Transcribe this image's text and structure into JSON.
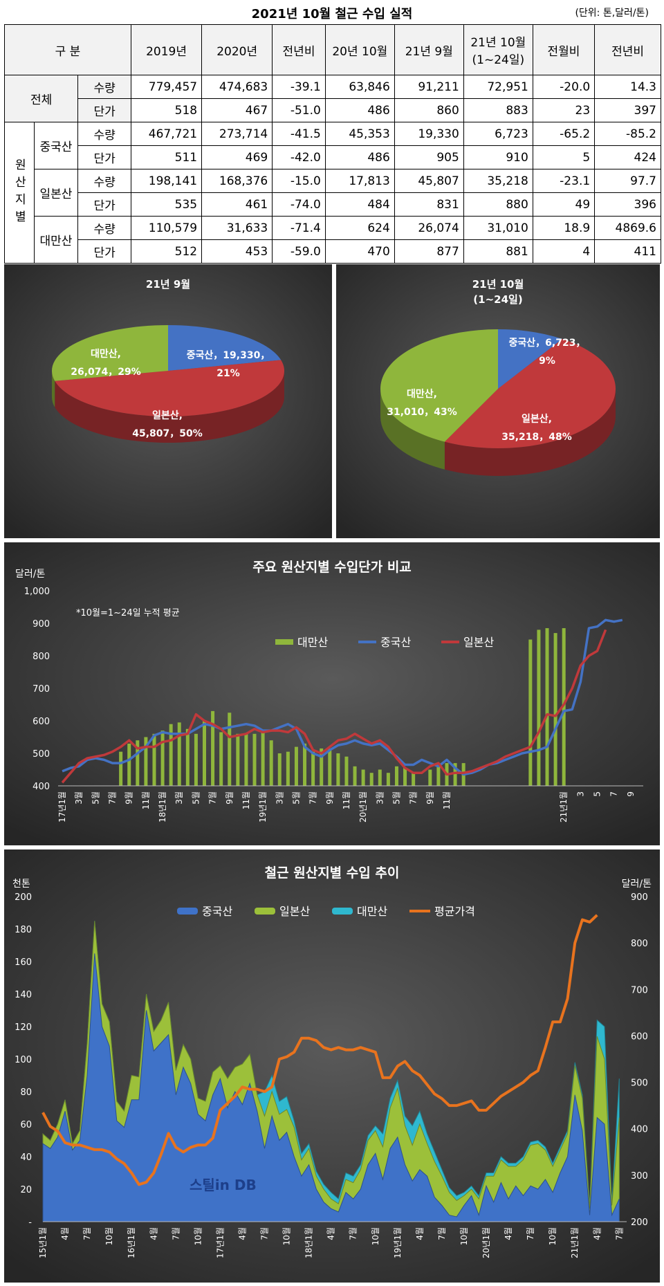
{
  "header": {
    "title": "2021년 10월 철근 수입 실적",
    "unit": "(단위: 톤,달러/톤)"
  },
  "table": {
    "col_gubun": "구 분",
    "columns": [
      "2019년",
      "2020년",
      "전년비",
      "20년 10월",
      "21년 9월",
      "21년 10월(1~24일)",
      "전월비",
      "전년비"
    ],
    "col6_line1": "21년 10월",
    "col6_line2": "(1~24일)",
    "total_label": "전체",
    "origin_label": "원산지별",
    "qty_label": "수량",
    "price_label": "단가",
    "rows": [
      {
        "group": "전체",
        "qty": [
          "779,457",
          "474,683",
          "-39.1",
          "63,846",
          "91,211",
          "72,951",
          "-20.0",
          "14.3"
        ],
        "price": [
          "518",
          "467",
          "-51.0",
          "486",
          "860",
          "883",
          "23",
          "397"
        ]
      },
      {
        "group": "중국산",
        "qty": [
          "467,721",
          "273,714",
          "-41.5",
          "45,353",
          "19,330",
          "6,723",
          "-65.2",
          "-85.2"
        ],
        "price": [
          "511",
          "469",
          "-42.0",
          "486",
          "905",
          "910",
          "5",
          "424"
        ]
      },
      {
        "group": "일본산",
        "qty": [
          "198,141",
          "168,376",
          "-15.0",
          "17,813",
          "45,807",
          "35,218",
          "-23.1",
          "97.7"
        ],
        "price": [
          "535",
          "461",
          "-74.0",
          "484",
          "831",
          "880",
          "49",
          "396"
        ]
      },
      {
        "group": "대만산",
        "qty": [
          "110,579",
          "31,633",
          "-71.4",
          "624",
          "26,074",
          "31,010",
          "18.9",
          "4869.6"
        ],
        "price": [
          "512",
          "453",
          "-59.0",
          "470",
          "877",
          "881",
          "4",
          "411"
        ]
      }
    ]
  },
  "colors": {
    "china": "#4472c4",
    "japan": "#c0393b",
    "taiwan": "#8fb63c",
    "avg": "#e8731e",
    "panel_bg": "#3d3d3d"
  },
  "chart_data": [
    {
      "type": "pie",
      "title": "21년 9월",
      "slices": [
        {
          "name": "중국산",
          "value": 19330,
          "value_label": "19,330",
          "pct": "21%"
        },
        {
          "name": "일본산",
          "value": 45807,
          "value_label": "45,807",
          "pct": "50%"
        },
        {
          "name": "대만산",
          "value": 26074,
          "value_label": "26,074",
          "pct": "29%"
        }
      ]
    },
    {
      "type": "pie",
      "title": "21년 10월",
      "subtitle": "(1~24일)",
      "slices": [
        {
          "name": "중국산",
          "value": 6723,
          "value_label": "6,723",
          "pct": "9%"
        },
        {
          "name": "일본산",
          "value": 35218,
          "value_label": "35,218",
          "pct": "48%"
        },
        {
          "name": "대만산",
          "value": 31010,
          "value_label": "31,010",
          "pct": "43%"
        }
      ]
    },
    {
      "type": "bar+line",
      "title": "주요 원산지별 수입단가 비교",
      "ylabel": "달러/톤",
      "annotation": "*10월=1~24일 누적 평균",
      "ylim": [
        400,
        1000
      ],
      "yticks": [
        "400",
        "500",
        "600",
        "700",
        "800",
        "900",
        "1,000"
      ],
      "x_tick_labels": [
        "17년1월",
        "3월",
        "5월",
        "7월",
        "9월",
        "11월",
        "18년1월",
        "3월",
        "5월",
        "7월",
        "9월",
        "11월",
        "19년1월",
        "3월",
        "5월",
        "7월",
        "9월",
        "11월",
        "20년1월",
        "3월",
        "5월",
        "7월",
        "9월",
        "11월",
        "21년1월",
        "3",
        "5",
        "7",
        "9"
      ],
      "series": [
        {
          "name": "대만산",
          "kind": "bar",
          "values": [
            null,
            null,
            null,
            null,
            null,
            null,
            null,
            505,
            530,
            540,
            550,
            560,
            570,
            590,
            595,
            575,
            560,
            600,
            630,
            565,
            625,
            560,
            560,
            560,
            570,
            540,
            500,
            505,
            520,
            530,
            505,
            515,
            515,
            500,
            490,
            460,
            450,
            440,
            450,
            440,
            460,
            455,
            440,
            null,
            450,
            460,
            470,
            470,
            470,
            null,
            null,
            null,
            null,
            null,
            null,
            null,
            850,
            880,
            885,
            870,
            885
          ]
        },
        {
          "name": "중국산",
          "kind": "line",
          "values": [
            445,
            455,
            460,
            480,
            485,
            480,
            470,
            470,
            480,
            500,
            520,
            555,
            565,
            560,
            560,
            560,
            575,
            590,
            585,
            575,
            580,
            585,
            590,
            585,
            570,
            570,
            580,
            590,
            575,
            520,
            500,
            490,
            510,
            525,
            530,
            540,
            530,
            525,
            530,
            510,
            490,
            465,
            465,
            480,
            470,
            460,
            480,
            455,
            435,
            440,
            450,
            465,
            470,
            480,
            490,
            500,
            505,
            510,
            520,
            575,
            630,
            635,
            720,
            885,
            890,
            910,
            905,
            910
          ]
        },
        {
          "name": "일본산",
          "kind": "line",
          "values": [
            410,
            440,
            470,
            485,
            490,
            495,
            505,
            520,
            540,
            515,
            520,
            520,
            535,
            540,
            555,
            560,
            620,
            600,
            590,
            575,
            550,
            555,
            560,
            575,
            565,
            570,
            570,
            565,
            580,
            560,
            510,
            500,
            520,
            540,
            545,
            560,
            545,
            530,
            540,
            520,
            485,
            455,
            440,
            440,
            460,
            470,
            435,
            440,
            440,
            445,
            455,
            465,
            475,
            490,
            500,
            510,
            520,
            565,
            620,
            615,
            650,
            700,
            770,
            800,
            815,
            880
          ]
        }
      ]
    },
    {
      "type": "area+line",
      "title": "철근 원산지별 수입 추이",
      "ylabel_left": "천톤",
      "ylabel_right": "달러/톤",
      "ylim_left": [
        0,
        200
      ],
      "ylim_right": [
        200,
        900
      ],
      "yticks_left": [
        "-",
        "20",
        "40",
        "60",
        "80",
        "100",
        "120",
        "140",
        "160",
        "180",
        "200"
      ],
      "yticks_right": [
        "200",
        "300",
        "400",
        "500",
        "600",
        "700",
        "800",
        "900"
      ],
      "x_tick_labels": [
        "15년1월",
        "4월",
        "7월",
        "10월",
        "16년1월",
        "4월",
        "7월",
        "10월",
        "17년1월",
        "4월",
        "7월",
        "10월",
        "18년1월",
        "4월",
        "7월",
        "10월",
        "19년1월",
        "4월",
        "7월",
        "10월",
        "20년1월",
        "4월",
        "7월",
        "10월",
        "21년1월",
        "4월",
        "7월"
      ],
      "watermark": "스틸in DB",
      "series": [
        {
          "name": "중국산",
          "kind": "area",
          "values": [
            48,
            45,
            52,
            68,
            44,
            50,
            90,
            165,
            120,
            108,
            62,
            58,
            75,
            75,
            130,
            105,
            110,
            115,
            78,
            95,
            85,
            66,
            62,
            78,
            88,
            70,
            80,
            72,
            85,
            68,
            45,
            65,
            50,
            55,
            40,
            28,
            35,
            20,
            12,
            8,
            6,
            18,
            14,
            20,
            35,
            42,
            26,
            45,
            52,
            35,
            25,
            32,
            28,
            15,
            10,
            4,
            3,
            10,
            16,
            4,
            22,
            12,
            24,
            14,
            22,
            16,
            22,
            20,
            26,
            18,
            30,
            40,
            78,
            56,
            4,
            64,
            60,
            4,
            14
          ]
        },
        {
          "name": "일본산",
          "kind": "area",
          "values": [
            6,
            5,
            8,
            7,
            4,
            6,
            20,
            20,
            14,
            15,
            12,
            10,
            15,
            14,
            10,
            12,
            14,
            20,
            15,
            14,
            15,
            10,
            12,
            14,
            8,
            18,
            15,
            25,
            18,
            10,
            20,
            15,
            16,
            14,
            18,
            10,
            10,
            8,
            8,
            6,
            5,
            8,
            10,
            12,
            15,
            14,
            20,
            25,
            30,
            24,
            22,
            28,
            20,
            22,
            18,
            14,
            10,
            6,
            4,
            10,
            6,
            16,
            14,
            20,
            12,
            22,
            25,
            28,
            18,
            16,
            14,
            14,
            18,
            20,
            4,
            50,
            40,
            6,
            50
          ]
        },
        {
          "name": "대만산",
          "kind": "area",
          "values": [
            0,
            0,
            0,
            0,
            0,
            0,
            0,
            0,
            0,
            0,
            0,
            0,
            0,
            0,
            0,
            0,
            0,
            0,
            0,
            0,
            0,
            0,
            0,
            0,
            0,
            0,
            0,
            0,
            0,
            0,
            15,
            10,
            8,
            8,
            4,
            4,
            3,
            3,
            3,
            4,
            3,
            4,
            4,
            3,
            3,
            3,
            8,
            6,
            5,
            6,
            12,
            8,
            6,
            6,
            4,
            3,
            3,
            2,
            2,
            2,
            2,
            2,
            2,
            2,
            2,
            2,
            2,
            2,
            2,
            2,
            2,
            2,
            2,
            2,
            2,
            10,
            20,
            2,
            24
          ]
        },
        {
          "name": "평균가격",
          "kind": "line",
          "axis": "right",
          "values": [
            435,
            405,
            395,
            370,
            365,
            365,
            360,
            355,
            355,
            350,
            335,
            325,
            305,
            280,
            285,
            305,
            345,
            390,
            360,
            350,
            360,
            365,
            365,
            380,
            440,
            455,
            470,
            490,
            485,
            485,
            480,
            490,
            550,
            555,
            565,
            595,
            595,
            590,
            575,
            570,
            575,
            570,
            570,
            575,
            570,
            565,
            510,
            510,
            535,
            545,
            525,
            515,
            495,
            475,
            465,
            450,
            450,
            455,
            460,
            440,
            440,
            455,
            470,
            480,
            490,
            500,
            515,
            525,
            575,
            630,
            630,
            680,
            800,
            850,
            845,
            860
          ]
        }
      ]
    }
  ]
}
